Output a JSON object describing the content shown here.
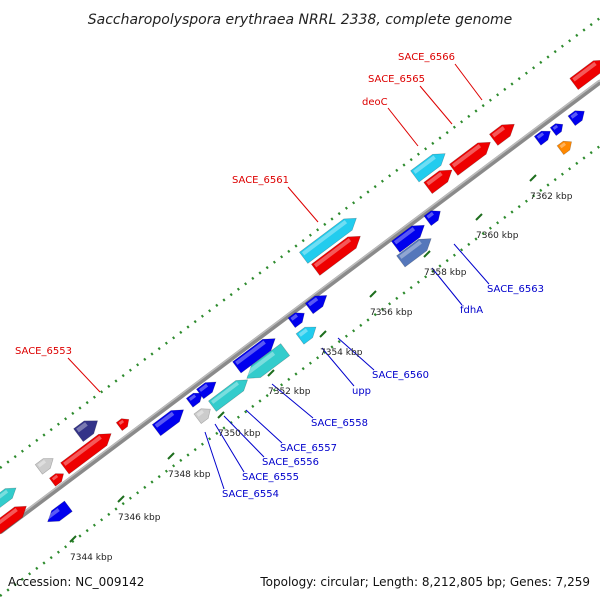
{
  "title": "Saccharopolyspora erythraea NRRL 2338, complete genome",
  "accession": "Accession: NC_009142",
  "summary": "Topology: circular; Length: 8,212,805 bp; Genes: 7,259",
  "ticks": [
    {
      "label": "7344 kbp"
    },
    {
      "label": "7346 kbp"
    },
    {
      "label": "7348 kbp"
    },
    {
      "label": "7350 kbp"
    },
    {
      "label": "7352 kbp"
    },
    {
      "label": "7354 kbp"
    },
    {
      "label": "7356 kbp"
    },
    {
      "label": "7358 kbp"
    },
    {
      "label": "7360 kbp"
    },
    {
      "label": "7362 kbp"
    }
  ],
  "labels_forward": [
    "SACE_6553",
    "SACE_6561",
    "deoC",
    "SACE_6565",
    "SACE_6566"
  ],
  "labels_reverse": [
    "SACE_6554",
    "SACE_6555",
    "SACE_6556",
    "SACE_6557",
    "SACE_6558",
    "upp",
    "SACE_6560",
    "fdhA",
    "SACE_6563"
  ],
  "colors": {
    "forward_label": "#dd0000",
    "reverse_label": "#0000cc",
    "backbone": "#888888",
    "tick": "#228b22",
    "red": "#ee0000",
    "blue": "#0000ee",
    "cyan": "#22ccee",
    "teal": "#33cccc",
    "navy": "#333388",
    "gray": "#cccccc",
    "orange": "#ff8800",
    "steel": "#5577bb"
  }
}
